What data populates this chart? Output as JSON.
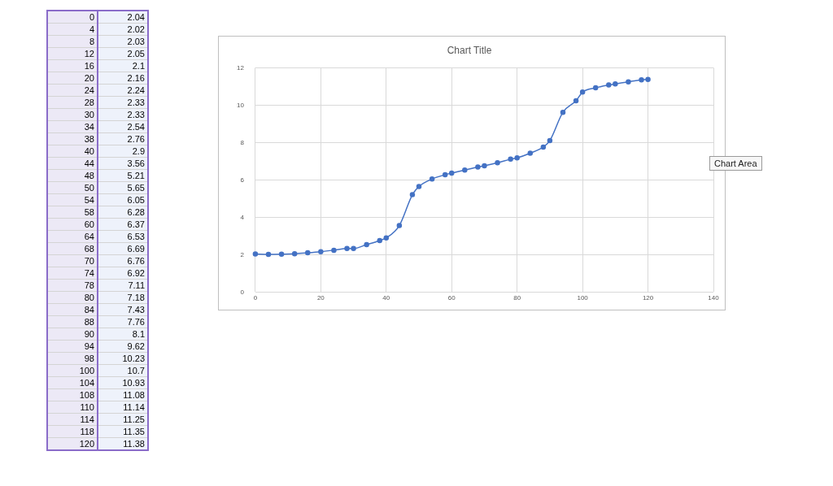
{
  "chart_data": [
    {
      "type": "other",
      "categories": [
        "0",
        "4",
        "8",
        "12",
        "16",
        "20",
        "24",
        "28",
        "30",
        "34",
        "38",
        "40",
        "44",
        "48",
        "50",
        "54",
        "58",
        "60",
        "64",
        "68",
        "70",
        "74",
        "78",
        "80",
        "84",
        "88",
        "90",
        "94",
        "98",
        "100",
        "104",
        "108",
        "110",
        "114",
        "118",
        "120"
      ],
      "values": [
        2.04,
        2.02,
        2.03,
        2.05,
        2.1,
        2.16,
        2.24,
        2.33,
        2.33,
        2.54,
        2.76,
        2.9,
        3.56,
        5.21,
        5.65,
        6.05,
        6.28,
        6.37,
        6.53,
        6.69,
        6.76,
        6.92,
        7.11,
        7.18,
        7.43,
        7.76,
        8.1,
        9.62,
        10.23,
        10.7,
        10.93,
        11.08,
        11.14,
        11.25,
        11.35,
        11.38
      ],
      "data_labels": true
    },
    {
      "type": "line",
      "title": "Chart Title",
      "x": [
        0,
        4,
        8,
        12,
        16,
        20,
        24,
        28,
        30,
        34,
        38,
        40,
        44,
        48,
        50,
        54,
        58,
        60,
        64,
        68,
        70,
        74,
        78,
        80,
        84,
        88,
        90,
        94,
        98,
        100,
        104,
        108,
        110,
        114,
        118,
        120
      ],
      "series": [
        {
          "color": "#4472c4",
          "values": [
            2.04,
            2.02,
            2.03,
            2.05,
            2.1,
            2.16,
            2.24,
            2.33,
            2.33,
            2.54,
            2.76,
            2.9,
            3.56,
            5.21,
            5.65,
            6.05,
            6.28,
            6.37,
            6.53,
            6.69,
            6.76,
            6.92,
            7.11,
            7.18,
            7.43,
            7.76,
            8.1,
            9.62,
            10.23,
            10.7,
            10.93,
            11.08,
            11.14,
            11.25,
            11.35,
            11.38
          ]
        }
      ],
      "xlim": [
        0,
        140
      ],
      "xticks": [
        0,
        20,
        40,
        60,
        80,
        100,
        120,
        140
      ],
      "ylim": [
        0,
        12
      ],
      "yticks": [
        0,
        2,
        4,
        6,
        8,
        10,
        12
      ],
      "grid": true,
      "marker": "circle",
      "line_style": "solid",
      "annotations": [
        "Chart Area"
      ]
    }
  ]
}
